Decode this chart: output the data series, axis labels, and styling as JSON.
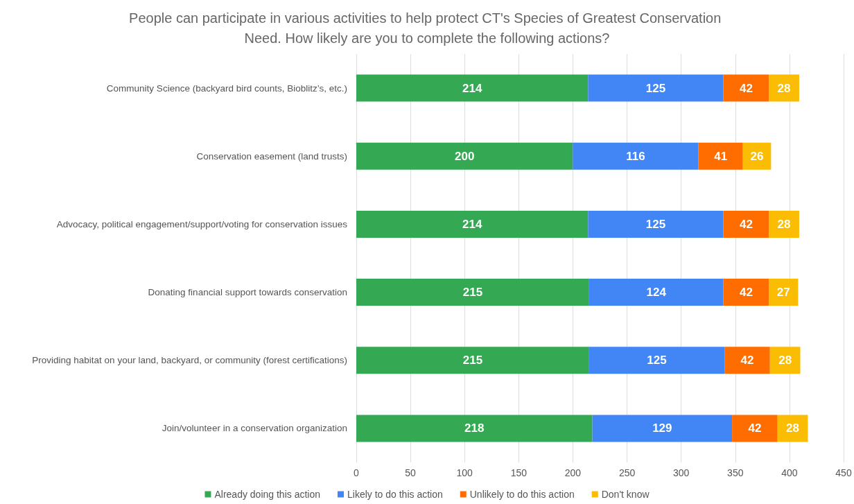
{
  "chart_data": {
    "type": "bar",
    "orientation": "horizontal",
    "stacked": true,
    "data_labels": true,
    "grid": "x",
    "legend": "bottom",
    "title": "People can participate in various activities to help protect CT's Species of Greatest Conservation Need. How likely are you to complete the following actions?",
    "categories": [
      "Community Science (backyard bird counts, Bioblitz’s, etc.)",
      "Conservation easement (land trusts)",
      "Advocacy, political engagement/support/voting for conservation issues",
      "Donating financial support towards conservation",
      "Providing habitat on your land, backyard, or community (forest certifications)",
      "Join/volunteer in a conservation organization"
    ],
    "series": [
      {
        "name": "Already doing this action",
        "color": "#34a853",
        "values": [
          214,
          200,
          214,
          215,
          215,
          218
        ]
      },
      {
        "name": "Likely to do this action",
        "color": "#4285f4",
        "values": [
          125,
          116,
          125,
          124,
          125,
          129
        ]
      },
      {
        "name": "Unlikely to do this action",
        "color": "#ff6d01",
        "values": [
          42,
          41,
          42,
          42,
          42,
          42
        ]
      },
      {
        "name": "Don't know",
        "color": "#fbbc04",
        "values": [
          28,
          26,
          28,
          27,
          28,
          28
        ]
      }
    ],
    "xlim": [
      0,
      450
    ],
    "xticks": [
      0,
      50,
      100,
      150,
      200,
      250,
      300,
      350,
      400,
      450
    ]
  }
}
